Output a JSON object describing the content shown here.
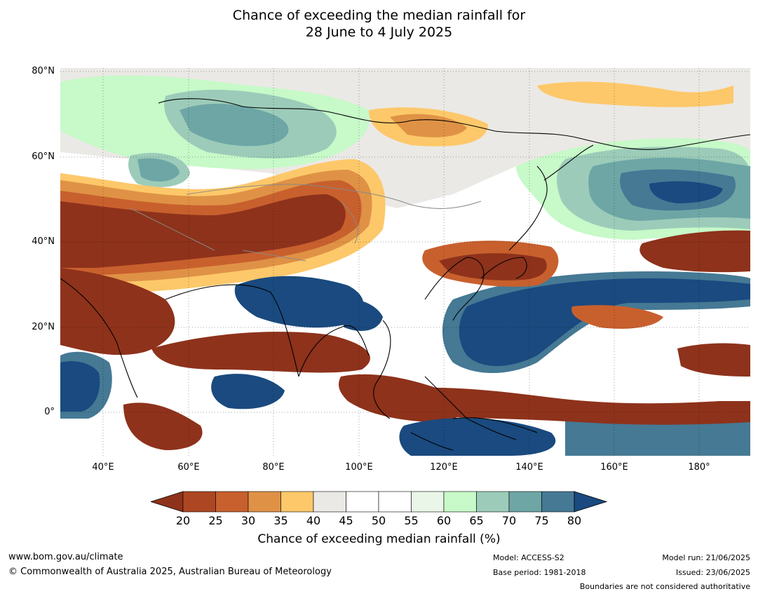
{
  "title": {
    "line1": "Chance of exceeding the median rainfall for",
    "line2": "28 June to 4 July 2025"
  },
  "axes": {
    "lat_labels": [
      "80°N",
      "60°N",
      "40°N",
      "20°N",
      "0°"
    ],
    "lon_labels": [
      "40°E",
      "60°E",
      "80°E",
      "100°E",
      "120°E",
      "140°E",
      "160°E",
      "180°"
    ],
    "lon_range": [
      30,
      192
    ],
    "lat_range": [
      -10,
      81
    ]
  },
  "colorbar": {
    "title": "Chance of exceeding median rainfall (%)",
    "ticks": [
      "20",
      "25",
      "30",
      "35",
      "40",
      "45",
      "50",
      "55",
      "60",
      "65",
      "70",
      "75",
      "80"
    ],
    "colors": [
      "#8e321b",
      "#ad4623",
      "#c8602e",
      "#df9245",
      "#fdc86a",
      "#ebe9e5",
      "#ffffff",
      "#ffffff",
      "#eaf6e8",
      "#c7f9c9",
      "#9cccb9",
      "#6ea6a6",
      "#457994",
      "#1a4a7f"
    ]
  },
  "footer": {
    "website": "www.bom.gov.au/climate",
    "copyright": "© Commonwealth of Australia 2025, Australian Bureau of Meteorology",
    "model": "Model: ACCESS-S2",
    "base_period": "Base period: 1981-2018",
    "model_run": "Model run: 21/06/2025",
    "issued": "Issued: 23/06/2025",
    "disclaimer": "Boundaries are not considered authoritative"
  }
}
